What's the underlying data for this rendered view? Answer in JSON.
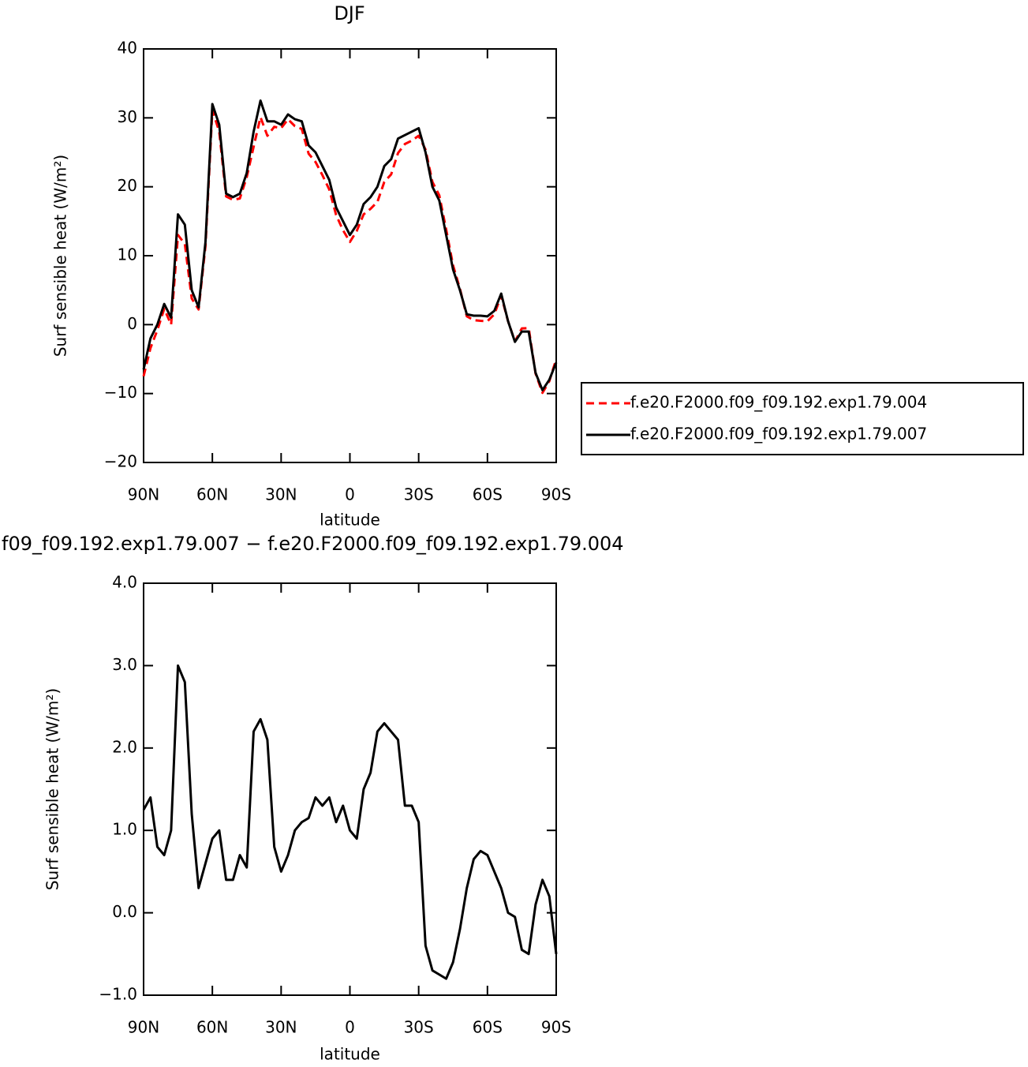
{
  "chart_data": [
    {
      "type": "line",
      "title": "DJF",
      "x_label": "latitude",
      "y_label": "Surf sensible heat (W/m²)",
      "x": [
        90,
        87,
        84,
        81,
        78,
        75,
        72,
        69,
        66,
        63,
        60,
        57,
        54,
        51,
        48,
        45,
        42,
        39,
        36,
        33,
        30,
        27,
        24,
        21,
        18,
        15,
        12,
        9,
        6,
        3,
        0,
        -3,
        -6,
        -9,
        -12,
        -15,
        -18,
        -21,
        -24,
        -27,
        -30,
        -33,
        -36,
        -39,
        -42,
        -45,
        -48,
        -51,
        -54,
        -57,
        -60,
        -63,
        -66,
        -69,
        -72,
        -75,
        -78,
        -81,
        -84,
        -87,
        -90
      ],
      "xlim": [
        90,
        -90
      ],
      "xticks": [
        {
          "value": 90,
          "label": "90N"
        },
        {
          "value": 60,
          "label": "60N"
        },
        {
          "value": 30,
          "label": "30N"
        },
        0,
        {
          "value": -30,
          "label": "30S"
        },
        {
          "value": -60,
          "label": "60S"
        },
        {
          "value": -90,
          "label": "90S"
        }
      ],
      "ylim": [
        -20,
        40
      ],
      "yticks": [
        {
          "value": -20,
          "label": "−20"
        },
        {
          "value": -10,
          "label": "−10"
        },
        0,
        10,
        20,
        30,
        40
      ],
      "legend": "right",
      "series": [
        {
          "name": "f.e20.F2000.f09_f09.192.exp1.79.004",
          "color": "#ff0000",
          "style": "dashed",
          "values": [
            -7.5,
            -3.4,
            -0.8,
            2.3,
            0,
            13,
            11.7,
            3.8,
            2.2,
            11.4,
            31.1,
            28,
            18.6,
            18.1,
            18.3,
            21.4,
            25.8,
            30.1,
            27.4,
            28.7,
            28.5,
            29.8,
            28.8,
            28.4,
            24.8,
            23.6,
            21.7,
            19.6,
            15.9,
            13.7,
            12,
            13.6,
            16,
            16.8,
            17.8,
            20.7,
            21.8,
            24.9,
            26.2,
            26.7,
            27.4,
            25.4,
            20.7,
            18.75,
            13.8,
            8.6,
            5.2,
            1.2,
            0.65,
            0.55,
            0.5,
            1.5,
            4.2,
            0.5,
            -2.45,
            -0.55,
            -0.5,
            -7.1,
            -9.9,
            -8.2,
            -5
          ]
        },
        {
          "name": "f.e20.F2000.f09_f09.192.exp1.79.007",
          "color": "#000000",
          "style": "solid",
          "values": [
            -6.5,
            -2,
            0,
            3,
            1,
            16,
            14.5,
            5,
            2.5,
            12,
            32,
            29,
            19,
            18.5,
            19,
            22,
            28,
            32.5,
            29.5,
            29.5,
            29,
            30.5,
            29.8,
            29.5,
            26,
            25,
            23,
            21,
            17,
            15,
            13,
            14.5,
            17.5,
            18.5,
            20,
            23,
            24,
            27,
            27.5,
            28,
            28.5,
            25,
            20,
            18,
            13,
            8,
            5,
            1.5,
            1.3,
            1.3,
            1.2,
            2,
            4.5,
            0.5,
            -2.5,
            -1,
            -1,
            -7,
            -9.5,
            -8,
            -5.5
          ]
        }
      ]
    },
    {
      "type": "line",
      "title": "f09_f09.192.exp1.79.007 − f.e20.F2000.f09_f09.192.exp1.79.004",
      "x_label": "latitude",
      "y_label": "Surf sensible heat (W/m²)",
      "x": [
        90,
        87,
        84,
        81,
        78,
        75,
        72,
        69,
        66,
        63,
        60,
        57,
        54,
        51,
        48,
        45,
        42,
        39,
        36,
        33,
        30,
        27,
        24,
        21,
        18,
        15,
        12,
        9,
        6,
        3,
        0,
        -3,
        -6,
        -9,
        -12,
        -15,
        -18,
        -21,
        -24,
        -27,
        -30,
        -33,
        -36,
        -39,
        -42,
        -45,
        -48,
        -51,
        -54,
        -57,
        -60,
        -63,
        -66,
        -69,
        -72,
        -75,
        -78,
        -81,
        -84,
        -87,
        -90
      ],
      "xlim": [
        90,
        -90
      ],
      "xticks": [
        {
          "value": 90,
          "label": "90N"
        },
        {
          "value": 60,
          "label": "60N"
        },
        {
          "value": 30,
          "label": "30N"
        },
        0,
        {
          "value": -30,
          "label": "30S"
        },
        {
          "value": -60,
          "label": "60S"
        },
        {
          "value": -90,
          "label": "90S"
        }
      ],
      "ylim": [
        -1,
        4
      ],
      "yticks": [
        {
          "value": -1,
          "label": "−1.0"
        },
        {
          "value": 0,
          "label": "0.0"
        },
        {
          "value": 1,
          "label": "1.0"
        },
        {
          "value": 2,
          "label": "2.0"
        },
        {
          "value": 3,
          "label": "3.0"
        },
        {
          "value": 4,
          "label": "4.0"
        }
      ],
      "series": [
        {
          "color": "#000000",
          "style": "solid",
          "values": [
            1.25,
            1.4,
            0.8,
            0.7,
            1.0,
            3.0,
            2.8,
            1.2,
            0.3,
            0.6,
            0.9,
            1.0,
            0.4,
            0.4,
            0.7,
            0.55,
            2.2,
            2.35,
            2.1,
            0.8,
            0.5,
            0.7,
            1.0,
            1.1,
            1.15,
            1.4,
            1.3,
            1.4,
            1.1,
            1.3,
            1.0,
            0.9,
            1.5,
            1.7,
            2.2,
            2.3,
            2.2,
            2.1,
            1.3,
            1.3,
            1.1,
            -0.4,
            -0.7,
            -0.75,
            -0.8,
            -0.6,
            -0.2,
            0.3,
            0.65,
            0.75,
            0.7,
            0.5,
            0.3,
            0.0,
            -0.05,
            -0.45,
            -0.5,
            0.1,
            0.4,
            0.2,
            -0.5
          ]
        }
      ]
    }
  ]
}
